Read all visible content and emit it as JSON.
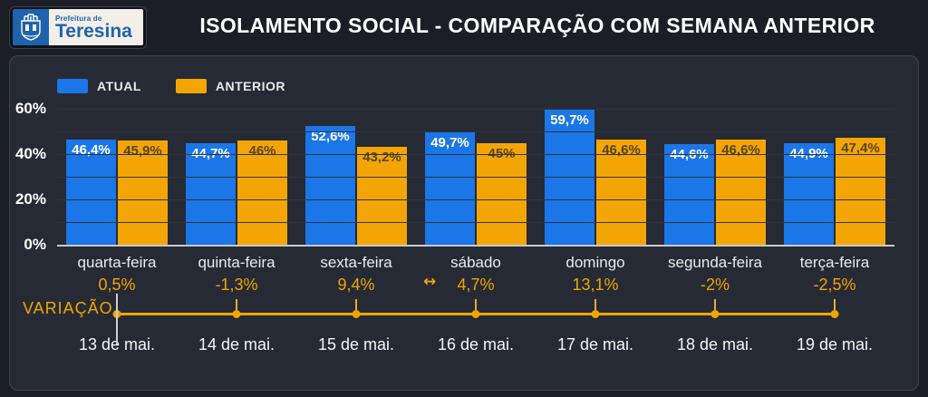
{
  "header": {
    "title": "ISOLAMENTO SOCIAL - COMPARAÇÃO COM SEMANA ANTERIOR",
    "logo": {
      "top_text": "Prefeitura de",
      "name": "Teresina"
    }
  },
  "icons": {
    "double_arrow": "↔",
    "crest": "city-crest"
  },
  "colors": {
    "page_bg": "#1b1e25",
    "panel_bg": "#262a34",
    "atual": "#1b76e8",
    "anterior": "#f4a506",
    "accent_text": "#f0a500"
  },
  "chart_data": {
    "type": "bar",
    "title": "ISOLAMENTO SOCIAL - COMPARAÇÃO COM SEMANA ANTERIOR",
    "categories": [
      "quarta-feira",
      "quinta-feira",
      "sexta-feira",
      "sábado",
      "domingo",
      "segunda-feira",
      "terça-feira"
    ],
    "series": [
      {
        "name": "ATUAL",
        "color": "#1b76e8",
        "values": [
          46.4,
          44.7,
          52.6,
          49.7,
          59.7,
          44.6,
          44.9
        ],
        "labels": [
          "46,4%",
          "44,7%",
          "52,6%",
          "49,7%",
          "59,7%",
          "44,6%",
          "44,9%"
        ]
      },
      {
        "name": "ANTERIOR",
        "color": "#f4a506",
        "values": [
          45.9,
          46.0,
          43.2,
          45.0,
          46.6,
          46.6,
          47.4
        ],
        "labels": [
          "45,9%",
          "46%",
          "43,2%",
          "45%",
          "46,6%",
          "46,6%",
          "47,4%"
        ]
      }
    ],
    "y_ticks": [
      "60%",
      "40%",
      "20%",
      "0%"
    ],
    "ylim": [
      0,
      60
    ],
    "grid": true,
    "legend_position": "top-left",
    "variation": {
      "label": "VARIAÇÃO",
      "values": [
        0.5,
        -1.3,
        9.4,
        4.7,
        13.1,
        -2.0,
        -2.5
      ],
      "labels": [
        "0,5%",
        "-1,3%",
        "9,4%",
        "4,7%",
        "13,1%",
        "-2%",
        "-2,5%"
      ]
    },
    "dates": [
      "13 de mai.",
      "14 de mai.",
      "15 de mai.",
      "16 de mai.",
      "17 de mai.",
      "18 de mai.",
      "19 de mai."
    ]
  }
}
